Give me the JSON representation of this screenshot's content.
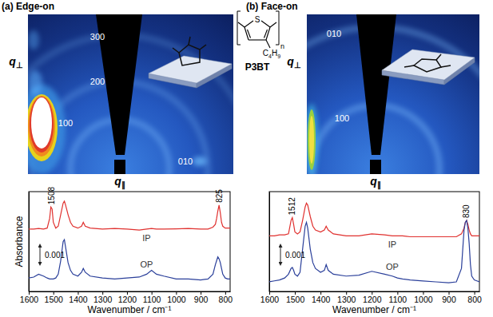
{
  "chart_data": [
    {
      "type": "line",
      "title": "(a) Edge-on",
      "x_label": "Wavenumber / cm⁻¹",
      "y_label": "Absorbance",
      "xlim": [
        1600,
        780
      ],
      "xticks": [
        1600,
        1500,
        1400,
        1300,
        1200,
        1100,
        1000,
        900,
        800
      ],
      "ylim": [
        0,
        0.0052
      ],
      "tick_labels": "x",
      "x": [
        1600,
        1580,
        1560,
        1540,
        1525,
        1515,
        1510,
        1505,
        1500,
        1490,
        1480,
        1470,
        1460,
        1455,
        1450,
        1440,
        1430,
        1420,
        1400,
        1385,
        1378,
        1370,
        1350,
        1300,
        1250,
        1200,
        1150,
        1120,
        1100,
        1080,
        1050,
        1000,
        950,
        900,
        870,
        850,
        840,
        835,
        830,
        825,
        820,
        815,
        810,
        800,
        790,
        780
      ],
      "series": [
        {
          "name": "IP",
          "color": "#e0312f",
          "values": [
            0.00325,
            0.00325,
            0.00328,
            0.00325,
            0.0033,
            0.0038,
            0.0044,
            0.0043,
            0.0036,
            0.0033,
            0.0034,
            0.004,
            0.0046,
            0.0047,
            0.0045,
            0.004,
            0.0036,
            0.0034,
            0.0033,
            0.0034,
            0.0036,
            0.0034,
            0.0033,
            0.00325,
            0.00328,
            0.00325,
            0.0032,
            0.00325,
            0.00328,
            0.00325,
            0.00325,
            0.00326,
            0.00328,
            0.00325,
            0.00325,
            0.00335,
            0.0035,
            0.0038,
            0.0042,
            0.0045,
            0.0041,
            0.0036,
            0.0034,
            0.0033,
            0.0033,
            0.0033
          ]
        },
        {
          "name": "OP",
          "color": "#2a3f9a",
          "values": [
            0.0007,
            0.00075,
            0.0009,
            0.0008,
            0.0007,
            0.00065,
            0.00065,
            0.00065,
            0.00065,
            0.0007,
            0.0009,
            0.0016,
            0.0026,
            0.0027,
            0.0023,
            0.0015,
            0.0011,
            0.0009,
            0.0008,
            0.001,
            0.0012,
            0.001,
            0.0008,
            0.0007,
            0.00065,
            0.0007,
            0.00075,
            0.0009,
            0.0011,
            0.0009,
            0.0008,
            0.00065,
            0.00065,
            0.0006,
            0.00065,
            0.0009,
            0.0014,
            0.0016,
            0.0018,
            0.0017,
            0.0015,
            0.0012,
            0.0009,
            0.0007,
            0.00065,
            0.00065
          ]
        }
      ],
      "annotations": [
        {
          "text": "1508",
          "x": 1508
        },
        {
          "text": "825",
          "x": 825
        }
      ],
      "scale_bar": {
        "value": 0.001,
        "label": "0.001"
      }
    },
    {
      "type": "line",
      "title": "(b) Face-on",
      "x_label": "Wavenumber / cm⁻¹",
      "xlim": [
        1600,
        780
      ],
      "xticks": [
        1600,
        1500,
        1400,
        1300,
        1200,
        1100,
        1000,
        900,
        800
      ],
      "ylim": [
        0,
        0.0052
      ],
      "tick_labels": "x",
      "x": [
        1600,
        1580,
        1560,
        1540,
        1525,
        1515,
        1510,
        1505,
        1500,
        1490,
        1480,
        1470,
        1460,
        1455,
        1450,
        1440,
        1430,
        1420,
        1400,
        1385,
        1378,
        1370,
        1350,
        1300,
        1250,
        1200,
        1150,
        1120,
        1100,
        1080,
        1050,
        1000,
        950,
        900,
        870,
        850,
        840,
        835,
        830,
        825,
        820,
        815,
        810,
        800,
        790,
        780
      ],
      "series": [
        {
          "name": "IP",
          "color": "#e0312f",
          "values": [
            0.0029,
            0.0029,
            0.00295,
            0.00295,
            0.003,
            0.0037,
            0.00385,
            0.0035,
            0.0031,
            0.003,
            0.0031,
            0.0037,
            0.0044,
            0.0046,
            0.0045,
            0.0039,
            0.0034,
            0.0032,
            0.0031,
            0.0032,
            0.0034,
            0.0032,
            0.003,
            0.0029,
            0.0029,
            0.003,
            0.00295,
            0.0029,
            0.0029,
            0.0029,
            0.00285,
            0.00285,
            0.00285,
            0.00285,
            0.00285,
            0.003,
            0.0033,
            0.0036,
            0.0037,
            0.0035,
            0.0032,
            0.003,
            0.0029,
            0.0029,
            0.0029,
            0.0029
          ]
        },
        {
          "name": "OP",
          "color": "#2a3f9a",
          "values": [
            0.0005,
            0.00055,
            0.0006,
            0.0007,
            0.0009,
            0.0012,
            0.00125,
            0.0011,
            0.0009,
            0.0008,
            0.001,
            0.0022,
            0.0034,
            0.0036,
            0.0033,
            0.0022,
            0.0015,
            0.0012,
            0.001,
            0.0011,
            0.0014,
            0.0011,
            0.0009,
            0.0008,
            0.00085,
            0.00105,
            0.0009,
            0.0008,
            0.0007,
            0.00065,
            0.0006,
            0.00055,
            0.0005,
            0.00045,
            0.0005,
            0.0012,
            0.0032,
            0.0036,
            0.0037,
            0.0033,
            0.0025,
            0.0014,
            0.0008,
            0.0006,
            0.00055,
            0.0005
          ]
        }
      ],
      "annotations": [
        {
          "text": "1512",
          "x": 1512
        },
        {
          "text": "830",
          "x": 830
        }
      ],
      "scale_bar": {
        "value": 0.001,
        "label": "0.001"
      }
    }
  ],
  "images": [
    {
      "labels": [
        "300",
        "200",
        "100",
        "010"
      ],
      "x_label": "q∥",
      "y_label": "q⊥"
    },
    {
      "labels": [
        "010",
        "100"
      ],
      "x_label": "q∥",
      "y_label": "q⊥"
    }
  ],
  "structure": {
    "atom": "S",
    "repeat": "n",
    "substituent": "C4H9",
    "name": "P3BT"
  }
}
